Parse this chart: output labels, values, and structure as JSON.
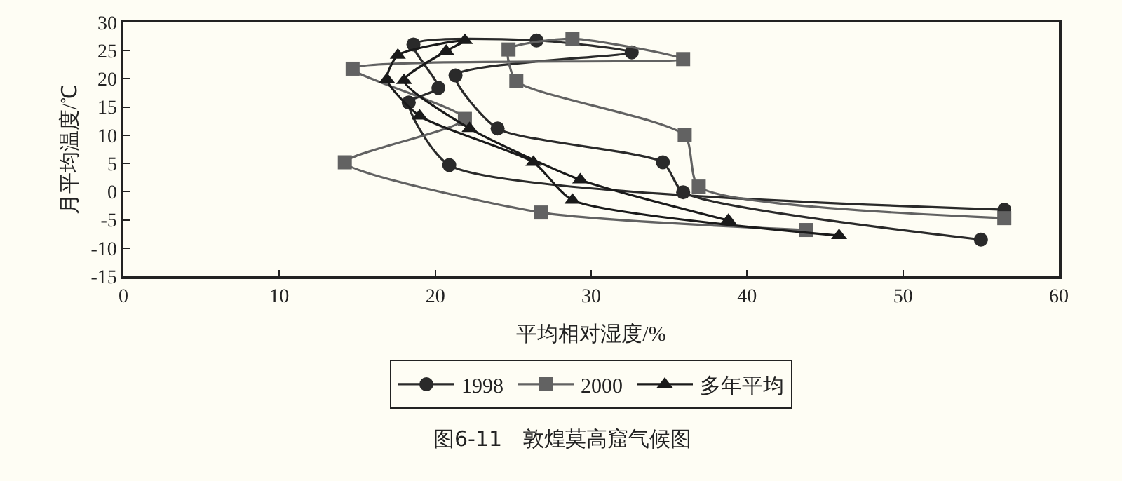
{
  "chart_data": {
    "type": "line",
    "title": "图6-11　敦煌莫高窟气候图",
    "xlabel": "平均相对湿度/%",
    "ylabel": "月平均温度/℃",
    "xlim": [
      0,
      60
    ],
    "xticks": [
      0,
      10,
      20,
      30,
      40,
      50,
      60
    ],
    "ylim": [
      -15,
      30
    ],
    "yticks": [
      -15,
      -10,
      -5,
      0,
      5,
      10,
      15,
      20,
      25,
      30
    ],
    "grid": false,
    "legend": "bottom",
    "series": [
      {
        "name": "1998",
        "color": "#2a2a2a",
        "marker": "circle",
        "x": [
          55,
          35.9,
          34.6,
          24.0,
          21.3,
          32.6,
          26.5,
          18.6,
          20.2,
          18.3,
          20.9,
          56.5
        ],
        "values": [
          -8.5,
          -0.1,
          5.2,
          11.2,
          20.6,
          24.7,
          26.8,
          26.1,
          18.4,
          15.8,
          4.7,
          -3.2
        ]
      },
      {
        "name": "2000",
        "color": "#626262",
        "marker": "square",
        "x": [
          43.8,
          26.8,
          14.2,
          21.9,
          14.7,
          35.9,
          28.8,
          24.7,
          25.2,
          36.0,
          36.9,
          56.5
        ],
        "values": [
          -6.8,
          -3.7,
          5.2,
          12.9,
          21.8,
          23.5,
          27.1,
          25.2,
          19.6,
          10.0,
          0.9,
          -4.7
        ]
      },
      {
        "name": "多年平均",
        "color": "#1a1a1a",
        "marker": "triangle",
        "x": [
          45.9,
          28.8,
          26.3,
          19.0,
          16.9,
          17.6,
          21.9,
          20.7,
          18.0,
          22.2,
          29.3,
          38.8
        ],
        "values": [
          -7.8,
          -1.5,
          5.2,
          13.4,
          19.9,
          24.2,
          26.8,
          24.9,
          19.7,
          11.2,
          2.1,
          -5.1
        ]
      }
    ]
  }
}
